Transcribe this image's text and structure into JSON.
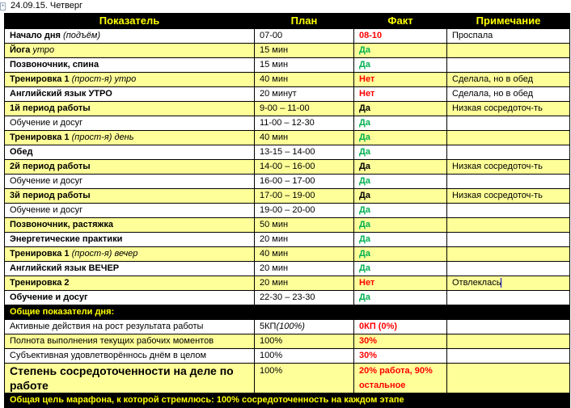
{
  "date_line": "24.09.15. Четверг",
  "headers": [
    "Показатель",
    "План",
    "Факт",
    "Примечание"
  ],
  "colors": {
    "header_bg": "#000000",
    "header_text": "#ffff00",
    "row_highlight": "#ffff99",
    "fail": "#ff0000",
    "success": "#00b050"
  },
  "rows": [
    {
      "label": "Начало дня",
      "label_italic": "(подъём)",
      "bold": true,
      "plan": "07-00",
      "fact": "08-10",
      "fact_status": "red",
      "note": "Проспала",
      "yellow": false
    },
    {
      "label": "Йога",
      "label_italic": "утро",
      "bold": true,
      "plan": "15 мин",
      "fact": "Да",
      "fact_status": "green",
      "note": "",
      "yellow": true
    },
    {
      "label": "Позвоночник,  спина",
      "label_italic": "",
      "bold": true,
      "plan": "15 мин",
      "fact": "Да",
      "fact_status": "green",
      "note": "",
      "yellow": false
    },
    {
      "label": "Тренировка 1",
      "label_italic": "(прост-я) утро",
      "bold": true,
      "plan": "40 мин",
      "fact": "Нет",
      "fact_status": "red",
      "note": "Сделала, но в обед",
      "yellow": true
    },
    {
      "label": "Английский язык УТРО",
      "label_italic": "",
      "bold": true,
      "plan": "20 минут",
      "fact": "Нет",
      "fact_status": "red",
      "note": "Сделала, но в обед",
      "yellow": false
    },
    {
      "label": "1й период работы",
      "label_italic": "",
      "bold": true,
      "plan": "9-00 – 11-00",
      "fact": "Да",
      "fact_status": "black",
      "note": "Низкая сосредоточ-ть",
      "yellow": true
    },
    {
      "label": "Обучение и досуг",
      "label_italic": "",
      "bold": false,
      "plan": "11-00 – 12-30",
      "fact": "Да",
      "fact_status": "green",
      "note": "",
      "yellow": false
    },
    {
      "label": "Тренировка 1",
      "label_italic": "(прост-я) день",
      "bold": true,
      "plan": "40 мин",
      "fact": "Да",
      "fact_status": "green",
      "note": "",
      "yellow": true
    },
    {
      "label": "Обед",
      "label_italic": "",
      "bold": true,
      "plan": "13-15 – 14-00",
      "fact": "Да",
      "fact_status": "green",
      "note": "",
      "yellow": false
    },
    {
      "label": "2й период работы",
      "label_italic": "",
      "bold": true,
      "plan": "14-00 – 16-00",
      "fact": "Да",
      "fact_status": "black",
      "note": "Низкая сосредоточ-ть",
      "yellow": true
    },
    {
      "label": "Обучение и досуг",
      "label_italic": "",
      "bold": false,
      "plan": "16-00 – 17-00",
      "fact": "Да",
      "fact_status": "green",
      "note": "",
      "yellow": false
    },
    {
      "label": "3й период работы",
      "label_italic": "",
      "bold": true,
      "plan": "17-00 – 19-00",
      "fact": "Да",
      "fact_status": "black",
      "note": "Низкая сосредоточ-ть",
      "yellow": true
    },
    {
      "label": "Обучение и досуг",
      "label_italic": "",
      "bold": false,
      "plan": "19-00 – 20-00",
      "fact": "Да",
      "fact_status": "green",
      "note": "",
      "yellow": false
    },
    {
      "label": "Позвоночник,  растяжка",
      "label_italic": "",
      "bold": true,
      "plan": "50 мин",
      "fact": "Да",
      "fact_status": "green",
      "note": "",
      "yellow": true
    },
    {
      "label": "Энергетические  практики",
      "label_italic": "",
      "bold": true,
      "plan": "20 мин",
      "fact": "Да",
      "fact_status": "green",
      "note": "",
      "yellow": false
    },
    {
      "label": "Тренировка 1",
      "label_italic": "(прост-я) вечер",
      "bold": true,
      "plan": "40 мин",
      "fact": "Да",
      "fact_status": "green",
      "note": "",
      "yellow": true
    },
    {
      "label": "Английский язык ВЕЧЕР",
      "label_italic": "",
      "bold": true,
      "plan": "20 мин",
      "fact": "Да",
      "fact_status": "green",
      "note": "",
      "yellow": false
    },
    {
      "label": "Тренировка 2",
      "label_italic": "",
      "bold": true,
      "plan": "20 мин",
      "fact": "Нет",
      "fact_status": "red",
      "note": "Отвлеклась",
      "yellow": true
    },
    {
      "label": "Обучение и досуг",
      "label_italic": "",
      "bold": true,
      "plan": "22-30 – 23-30",
      "fact": "Да",
      "fact_status": "green",
      "note": "",
      "yellow": false
    }
  ],
  "summary_title": "Общие показатели дня:",
  "summary": [
    {
      "label": "Активные действия  на рост результата работы",
      "plan": "5КП",
      "plan_italic": "(100%)",
      "fact": "0КП (0%)",
      "yellow": false
    },
    {
      "label": "Полнота выполнения  текущих  рабочих  моментов",
      "plan": "100%",
      "plan_italic": "",
      "fact": "30%",
      "yellow": true
    },
    {
      "label": "Субъективная  удовлетворённось  днём в целом",
      "plan": "100%",
      "plan_italic": "",
      "fact": "30%",
      "yellow": false
    }
  ],
  "focus": {
    "label": "Степень сосредоточенности на деле по работе",
    "plan": "100%",
    "fact": "20% работа, 90% остальное"
  },
  "footer": "Общая цель марафона,  к которой стремлюсь:  100% сосредоточенность  на каждом  этапе"
}
